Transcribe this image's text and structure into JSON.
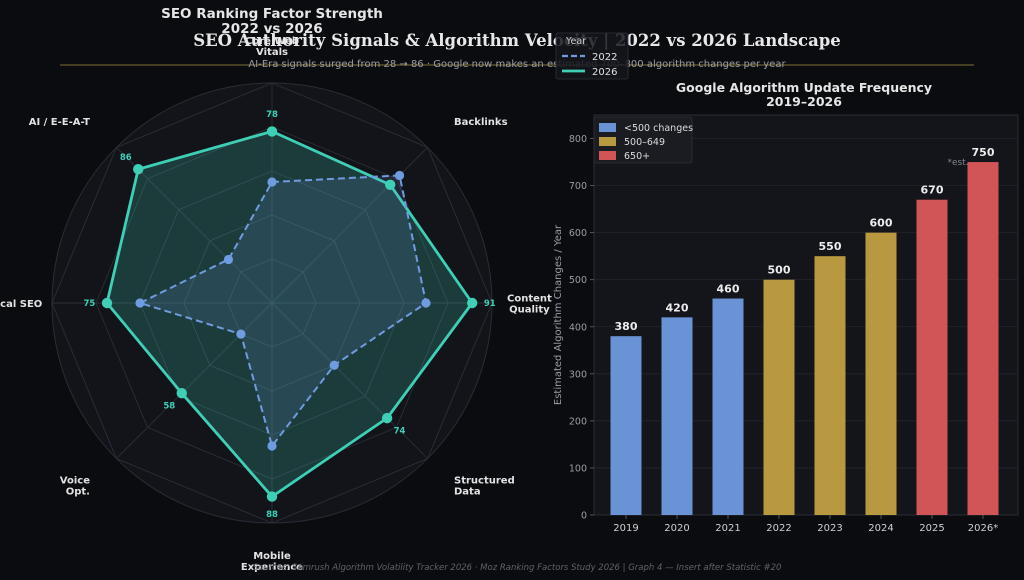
{
  "header": {
    "title": "SEO Authority Signals & Algorithm Velocity  |  2022 vs 2026 Landscape",
    "subtitle": "AI-Era signals surged from 28 → 86  ·  Google now makes an estimated 700–800 algorithm changes per year"
  },
  "footer": {
    "source": "Sources: Semrush Algorithm Volatility Tracker 2026 · Moz Ranking Factors Study 2026  |  Graph 4 — Insert after Statistic #20"
  },
  "colors": {
    "series_2022": "#6f9be0",
    "series_2026": "#3ecfb6",
    "low": "#6a93d6",
    "mid": "#b8993f",
    "high": "#d15456",
    "accent_line": "#a08a3c"
  },
  "chart_data": [
    {
      "type": "radar",
      "title": "SEO Ranking Factor Strength\n2022  vs  2026",
      "axes": [
        "Core Web\nVitals",
        "Backlinks",
        "Content\nQuality",
        "Structured\nData",
        "Mobile\nExperience",
        "Voice\nOpt.",
        "Local SEO",
        "AI / E-E-A-T"
      ],
      "rmax": 100,
      "grid_steps": [
        20,
        40,
        60,
        80,
        100
      ],
      "legend": {
        "title": "Year",
        "placement": "top-right"
      },
      "series": [
        {
          "name": "2022",
          "values": [
            55,
            82,
            70,
            40,
            65,
            20,
            60,
            28
          ]
        },
        {
          "name": "2026",
          "values": [
            78,
            76,
            91,
            74,
            88,
            58,
            75,
            86
          ],
          "labels": [
            "78",
            "",
            "91",
            "74",
            "88",
            "58",
            "75",
            "86"
          ]
        }
      ]
    },
    {
      "type": "bar",
      "title": "Google Algorithm Update Frequency\n2019–2026",
      "ylabel": "Estimated Algorithm Changes / Year",
      "categories": [
        "2019",
        "2020",
        "2021",
        "2022",
        "2023",
        "2024",
        "2025",
        "2026*"
      ],
      "values": [
        380,
        420,
        460,
        500,
        550,
        600,
        670,
        750
      ],
      "tiers": [
        "low",
        "low",
        "low",
        "mid",
        "mid",
        "mid",
        "high",
        "high"
      ],
      "ylim": [
        0,
        850
      ],
      "yticks": [
        0,
        100,
        200,
        300,
        400,
        500,
        600,
        700,
        800
      ],
      "annotation": "*est.",
      "legend": {
        "placement": "top-left",
        "items": [
          {
            "tier": "low",
            "label": "<500 changes"
          },
          {
            "tier": "mid",
            "label": "500–649"
          },
          {
            "tier": "high",
            "label": "650+"
          }
        ]
      }
    }
  ]
}
